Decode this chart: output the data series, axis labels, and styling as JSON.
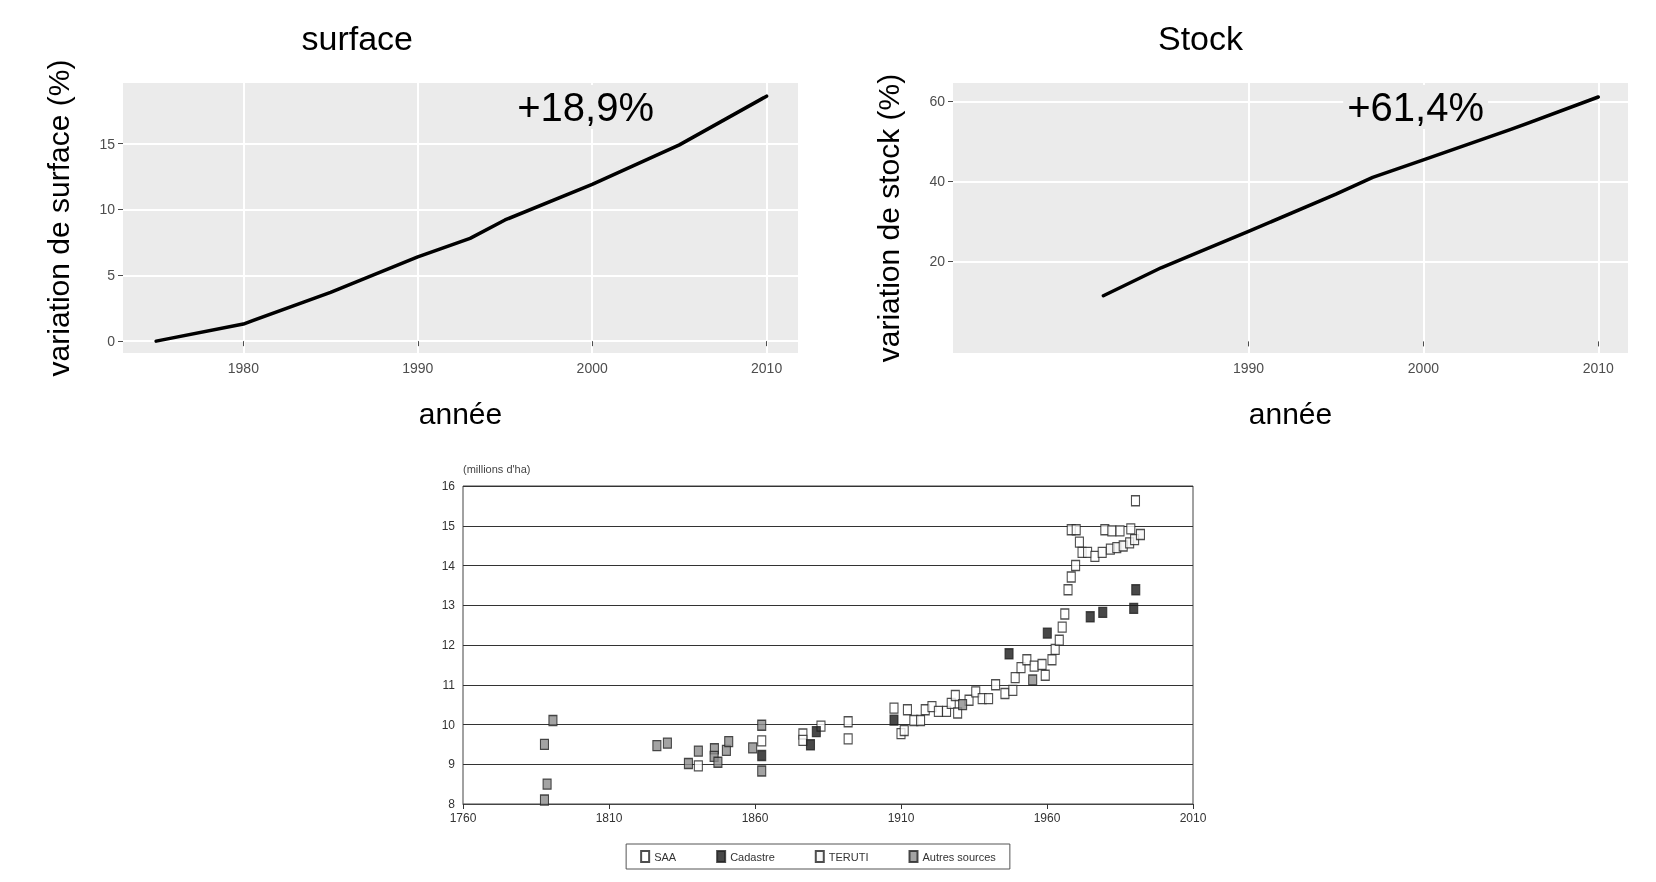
{
  "chart_data": [
    {
      "type": "line",
      "title": "surface",
      "xlabel": "année",
      "ylabel": "variation de surface (%)",
      "annotations": [
        "+18,9%"
      ],
      "xlim": [
        1973.1,
        2011.8
      ],
      "xticks": [
        1980,
        1990,
        2000,
        2010
      ],
      "ylim": [
        -0.9,
        19.6
      ],
      "yticks": [
        0,
        5,
        10,
        15
      ],
      "grid": true,
      "legend": false,
      "marker": "none",
      "line_style": "solid",
      "series": [
        {
          "color": "#000000",
          "x": [
            1975,
            1980,
            1985,
            1990,
            1993,
            1995,
            2000,
            2005,
            2010
          ],
          "values": [
            0,
            1.3,
            3.7,
            6.4,
            7.8,
            9.2,
            11.9,
            14.9,
            18.6
          ]
        }
      ]
    },
    {
      "type": "line",
      "title": "Stock",
      "xlabel": "année",
      "ylabel": "variation de stock (%)",
      "annotations": [
        "+61,4%"
      ],
      "xlim": [
        1973.1,
        2011.7
      ],
      "xticks": [
        1990,
        2000,
        2010
      ],
      "ylim": [
        -2.9,
        64.6
      ],
      "yticks": [
        20,
        40,
        60
      ],
      "grid": true,
      "legend": false,
      "marker": "none",
      "line_style": "solid",
      "series": [
        {
          "color": "#000000",
          "x": [
            1981.7,
            1985,
            1990,
            1995,
            1997.1,
            2000,
            2005,
            2010
          ],
          "values": [
            11.4,
            18.4,
            27.5,
            36.8,
            41,
            45.4,
            53,
            61.1
          ]
        }
      ]
    },
    {
      "type": "scatter",
      "ylabel": "(millions d'ha)",
      "xlim": [
        1760,
        2010
      ],
      "xticks": [
        1760,
        1810,
        1860,
        1910,
        1960,
        2010
      ],
      "ylim": [
        8,
        16
      ],
      "yticks": [
        8,
        9,
        10,
        11,
        12,
        13,
        14,
        15,
        16
      ],
      "grid": "y",
      "legend": "bottom",
      "marker": "square",
      "series": [
        {
          "name": "SAA",
          "color": "#ffffff",
          "x": [
            1840.6,
            1862.3,
            1876.4,
            1876.4,
            1882.6,
            1891.9,
            1891.9,
            1907.6,
            1910,
            1911.1,
            1912.2,
            1914.4,
            1916.7,
            1918.3,
            1920.6,
            1922.8,
            1925.6,
            1927.2,
            1928.6,
            1929.4,
            1933.3,
            1935.6,
            1937.8,
            1940,
            1942.4,
            1945.6,
            1948.3,
            1949.1,
            1951.1,
            1953.1,
            1955.6,
            1958.3,
            1959.4,
            1961.7,
            1962.8,
            1964.2,
            1965.2,
            1966.1,
            1967.2,
            1968.3,
            1969.8,
            1968.3,
            1970,
            1971.1,
            1972,
            1973.9,
            1976.4,
            1978.9,
            1979.8,
            1982.2,
            1985,
            1988.7,
            1990.3
          ],
          "values": [
            8.96,
            9.59,
            9.76,
            9.6,
            9.96,
            10.07,
            9.64,
            10.41,
            9.77,
            9.85,
            10.37,
            10.1,
            10.1,
            10.37,
            10.45,
            10.33,
            10.33,
            10.53,
            10.73,
            10.29,
            10.61,
            10.82,
            10.65,
            10.65,
            11,
            10.78,
            10.86,
            11.18,
            11.43,
            11.63,
            11.47,
            11.51,
            11.24,
            11.63,
            11.89,
            12.12,
            12.45,
            12.78,
            13.39,
            13.71,
            14,
            14.9,
            14.9,
            14.59,
            14.33,
            14.33,
            14.23,
            14.33,
            14.9,
            14.87,
            14.87,
            14.92,
            15.63
          ]
        },
        {
          "name": "Cadastre",
          "color": "#1a1a1a",
          "x": [
            1862.3,
            1879,
            1881,
            1907.6,
            1947,
            1960.1,
            1974.8,
            1979.1,
            1989.7,
            1990.4
          ],
          "values": [
            9.22,
            9.49,
            9.82,
            10.11,
            11.78,
            12.3,
            12.71,
            12.82,
            12.92,
            13.39
          ]
        },
        {
          "name": "TERUTI",
          "color": "#f5f5f5",
          "x": [
            1981.7,
            1983.9,
            1986.1,
            1988.3,
            1990,
            1992
          ],
          "values": [
            14.41,
            14.45,
            14.49,
            14.57,
            14.65,
            14.78
          ]
        },
        {
          "name": "Autres sources",
          "color": "#8c8c8c",
          "x": [
            1787.9,
            1790.8,
            1788.8,
            1787.9,
            1826.4,
            1830,
            1837.2,
            1840.6,
            1846.1,
            1846,
            1847.3,
            1850.2,
            1851,
            1859.2,
            1862.3,
            1862.3,
            1931.1,
            1955.1
          ],
          "values": [
            9.5,
            10.1,
            8.5,
            8.1,
            9.47,
            9.53,
            9.02,
            9.33,
            9.39,
            9.2,
            9.05,
            9.35,
            9.57,
            9.41,
            9.98,
            8.83,
            10.5,
            11.12
          ]
        }
      ]
    }
  ]
}
